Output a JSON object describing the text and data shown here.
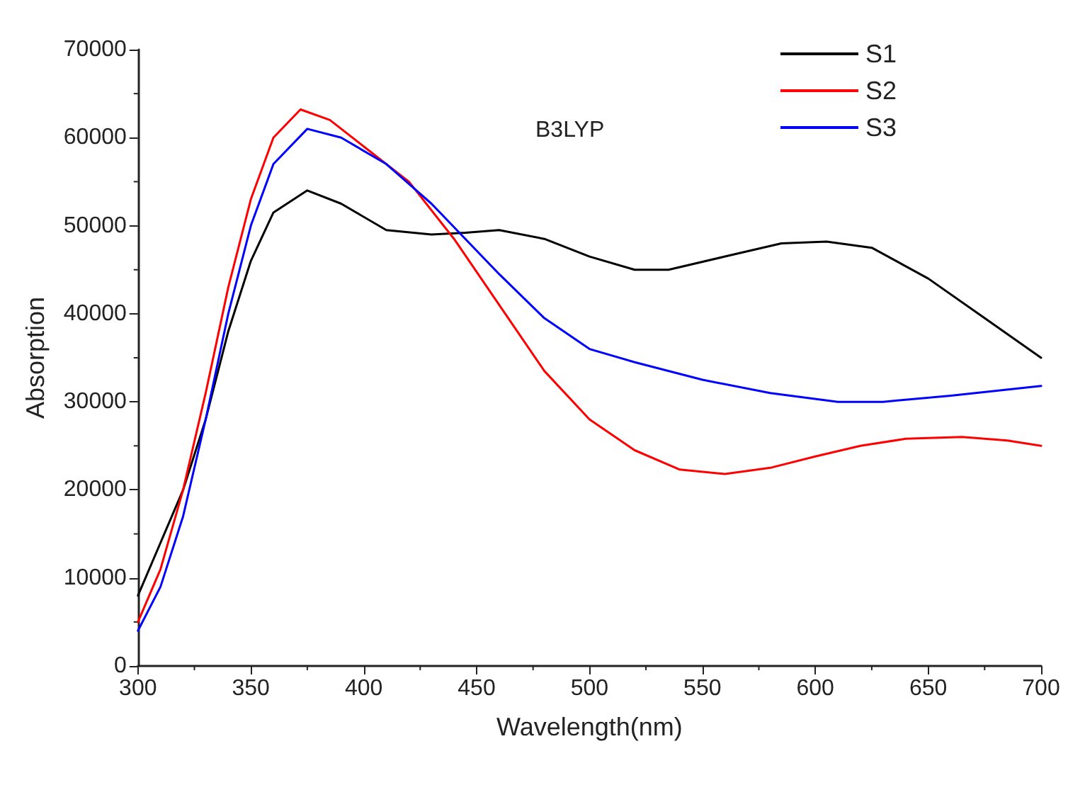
{
  "chart_data": {
    "type": "line",
    "xlabel": "Wavelength(nm)",
    "ylabel": "Absorption",
    "annotations": [
      "B3LYP"
    ],
    "legend": "top right",
    "grid": false,
    "marker": "none",
    "line_style": "solid",
    "xlim": [
      300,
      700
    ],
    "xticks": [
      300,
      350,
      400,
      450,
      500,
      550,
      600,
      650,
      700
    ],
    "ylim": [
      0,
      70000
    ],
    "yticks": [
      0,
      10000,
      20000,
      30000,
      40000,
      50000,
      60000,
      70000
    ],
    "series": [
      {
        "name": "S1",
        "color": "#000000",
        "x": [
          300,
          310,
          320,
          330,
          340,
          350,
          360,
          375,
          390,
          410,
          430,
          445,
          460,
          480,
          500,
          520,
          535,
          560,
          585,
          605,
          625,
          650,
          675,
          700
        ],
        "values": [
          8000,
          14000,
          20000,
          28000,
          38000,
          46000,
          51500,
          54000,
          52500,
          49500,
          49000,
          49200,
          49500,
          48500,
          46500,
          45000,
          45000,
          46500,
          48000,
          48200,
          47500,
          44000,
          39500,
          35000
        ]
      },
      {
        "name": "S2",
        "color": "#ff0000",
        "x": [
          300,
          310,
          320,
          330,
          340,
          350,
          360,
          372,
          385,
          400,
          420,
          440,
          460,
          480,
          500,
          520,
          540,
          560,
          580,
          600,
          620,
          640,
          665,
          685,
          700
        ],
        "values": [
          5000,
          11000,
          20000,
          31000,
          43000,
          53000,
          60000,
          63200,
          62000,
          59000,
          55000,
          48500,
          41000,
          33500,
          28000,
          24500,
          22300,
          21800,
          22500,
          23800,
          25000,
          25800,
          26000,
          25600,
          25000
        ]
      },
      {
        "name": "S3",
        "color": "#0000ff",
        "x": [
          300,
          310,
          320,
          330,
          340,
          350,
          360,
          375,
          390,
          410,
          430,
          445,
          460,
          480,
          500,
          520,
          550,
          580,
          610,
          630,
          660,
          700
        ],
        "values": [
          4000,
          9000,
          17000,
          28000,
          40000,
          50000,
          57000,
          61000,
          60000,
          57000,
          52500,
          48500,
          44500,
          39500,
          36000,
          34500,
          32500,
          31000,
          30000,
          30000,
          30700,
          31800
        ]
      }
    ]
  }
}
